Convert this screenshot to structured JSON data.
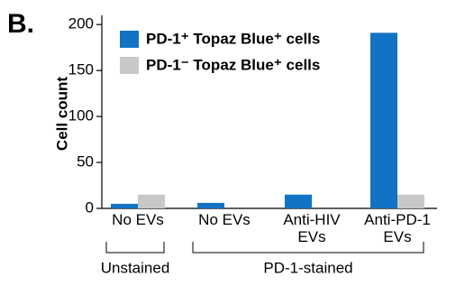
{
  "chart_data": {
    "type": "bar",
    "panel_label": "B.",
    "y_label": "Cell count",
    "categories": [
      "No EVs",
      "No EVs",
      "Anti-HIV EVs",
      "Anti-PD-1 EVs"
    ],
    "series": [
      {
        "name": "PD-1⁺ Topaz Blue⁺ cells",
        "color": "#1273c4",
        "values": [
          5,
          6,
          15,
          191
        ]
      },
      {
        "name": "PD-1⁻ Topaz Blue⁺ cells",
        "color": "#c8c8c8",
        "values": [
          15,
          0,
          0,
          15
        ]
      }
    ],
    "groups": [
      "Unstained",
      "PD-1-stained"
    ],
    "ylim": [
      0,
      210
    ],
    "yticks": [
      0,
      50,
      100,
      150,
      200
    ]
  }
}
